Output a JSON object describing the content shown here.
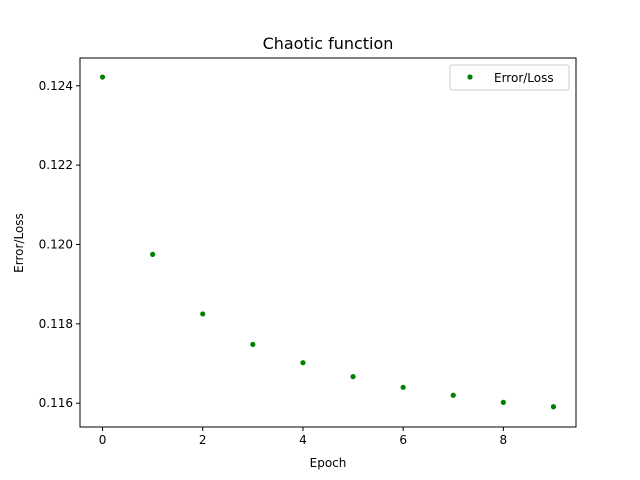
{
  "chart_data": {
    "type": "scatter",
    "title": "Chaotic function",
    "xlabel": "Epoch",
    "ylabel": "Error/Loss",
    "xlim": [
      -0.45,
      9.45
    ],
    "ylim": [
      0.1154,
      0.1247
    ],
    "xticks": [
      0,
      2,
      4,
      6,
      8
    ],
    "yticks": [
      0.116,
      0.118,
      0.12,
      0.122,
      0.124
    ],
    "ytick_labels": [
      "0.116",
      "0.118",
      "0.120",
      "0.122",
      "0.124"
    ],
    "grid": false,
    "legend_position": "top-right",
    "series": [
      {
        "name": "Error/Loss",
        "color": "#008000",
        "marker": "dot",
        "x": [
          0,
          1,
          2,
          3,
          4,
          5,
          6,
          7,
          8,
          9
        ],
        "y": [
          0.12422,
          0.11975,
          0.11825,
          0.11748,
          0.11702,
          0.11667,
          0.1164,
          0.1162,
          0.11602,
          0.11591
        ]
      }
    ]
  }
}
